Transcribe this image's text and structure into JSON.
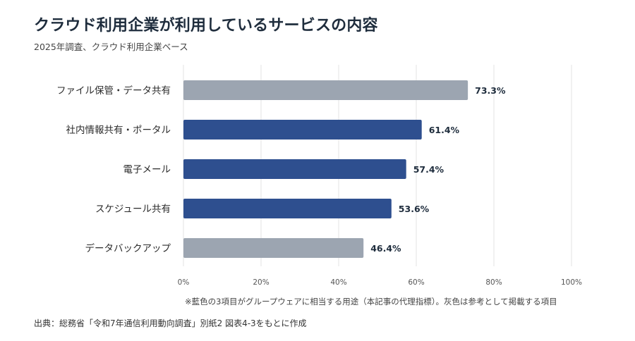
{
  "header": {
    "title": "クラウド利用企業が利用しているサービスの内容",
    "subtitle": "2025年調査、クラウド利用企業ベース"
  },
  "footer": {
    "note": "※藍色の3項目がグループウェアに相当する用途（本記事の代理指標）。灰色は参考として掲載する項目",
    "source": "出典：総務省「令和7年通信利用動向調査」別紙2 図表4-3をもとに作成"
  },
  "colors": {
    "highlight": "#2e4f8f",
    "reference": "#9ca5b1",
    "grid": "#e3e3e3",
    "text": "#2b2b2b"
  },
  "chart_data": {
    "type": "bar",
    "orientation": "horizontal",
    "categories": [
      "ファイル保管・データ共有",
      "社内情報共有・ポータル",
      "電子メール",
      "スケジュール共有",
      "データバックアップ"
    ],
    "values": [
      73.3,
      61.4,
      57.4,
      53.6,
      46.4
    ],
    "value_labels": [
      "73.3%",
      "61.4%",
      "57.4%",
      "53.6%",
      "46.4%"
    ],
    "highlighted": [
      false,
      true,
      true,
      true,
      false
    ],
    "xlim": [
      0,
      100
    ],
    "ticks": [
      0,
      20,
      40,
      60,
      80,
      100
    ],
    "tick_labels": [
      "0%",
      "20%",
      "40%",
      "60%",
      "80%",
      "100%"
    ],
    "grid": true,
    "legend": "none"
  }
}
